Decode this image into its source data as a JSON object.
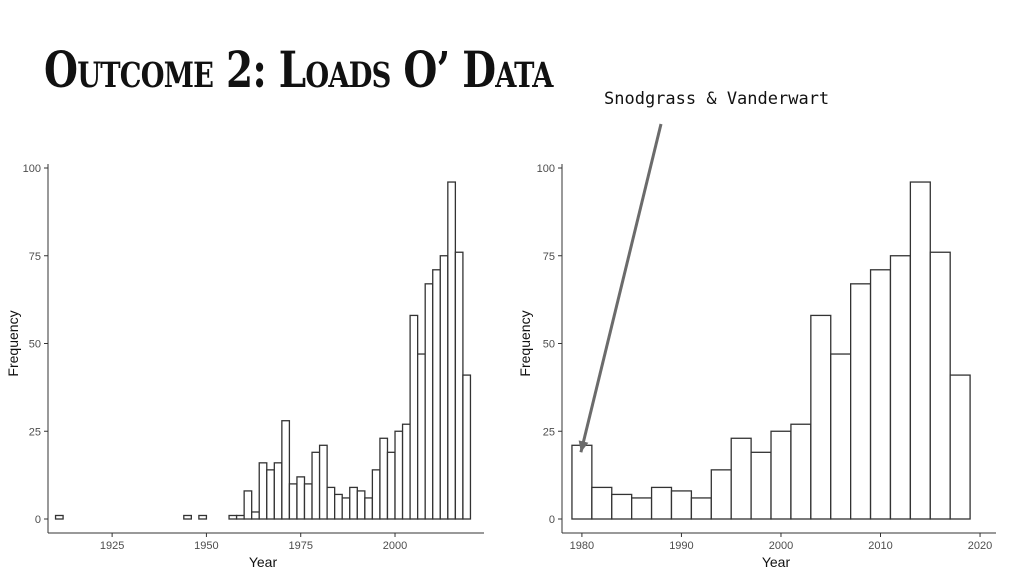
{
  "title": "Outcome 2: Loads O’ Data",
  "annotation": {
    "text": "Snodgrass & Vanderwart",
    "color": "#6b6b6b"
  },
  "chart_data": [
    {
      "type": "bar",
      "subtype": "histogram",
      "bin_width": 2,
      "xlabel": "Year",
      "ylabel": "Frequency",
      "xlim": [
        1908,
        2022
      ],
      "ylim": [
        0,
        100
      ],
      "x_ticks": [
        1925,
        1950,
        1975,
        2000
      ],
      "y_ticks": [
        0,
        25,
        50,
        75,
        100
      ],
      "grid": false,
      "bar_fill": "#ffffff",
      "bar_stroke": "#333333",
      "bins": [
        {
          "start": 1910,
          "value": 1
        },
        {
          "start": 1944,
          "value": 1
        },
        {
          "start": 1948,
          "value": 1
        },
        {
          "start": 1956,
          "value": 1
        },
        {
          "start": 1958,
          "value": 1
        },
        {
          "start": 1960,
          "value": 8
        },
        {
          "start": 1962,
          "value": 2
        },
        {
          "start": 1964,
          "value": 16
        },
        {
          "start": 1966,
          "value": 14
        },
        {
          "start": 1968,
          "value": 16
        },
        {
          "start": 1970,
          "value": 28
        },
        {
          "start": 1972,
          "value": 10
        },
        {
          "start": 1974,
          "value": 12
        },
        {
          "start": 1976,
          "value": 10
        },
        {
          "start": 1978,
          "value": 19
        },
        {
          "start": 1980,
          "value": 21
        },
        {
          "start": 1982,
          "value": 9
        },
        {
          "start": 1984,
          "value": 7
        },
        {
          "start": 1986,
          "value": 6
        },
        {
          "start": 1988,
          "value": 9
        },
        {
          "start": 1990,
          "value": 8
        },
        {
          "start": 1992,
          "value": 6
        },
        {
          "start": 1994,
          "value": 14
        },
        {
          "start": 1996,
          "value": 23
        },
        {
          "start": 1998,
          "value": 19
        },
        {
          "start": 2000,
          "value": 25
        },
        {
          "start": 2002,
          "value": 27
        },
        {
          "start": 2004,
          "value": 58
        },
        {
          "start": 2006,
          "value": 47
        },
        {
          "start": 2008,
          "value": 67
        },
        {
          "start": 2010,
          "value": 71
        },
        {
          "start": 2012,
          "value": 75
        },
        {
          "start": 2014,
          "value": 96
        },
        {
          "start": 2016,
          "value": 76
        },
        {
          "start": 2018,
          "value": 41
        }
      ]
    },
    {
      "type": "bar",
      "subtype": "histogram",
      "bin_width": 2,
      "xlabel": "Year",
      "ylabel": "Frequency",
      "xlim": [
        1978,
        2021
      ],
      "ylim": [
        0,
        100
      ],
      "x_ticks": [
        1980,
        1990,
        2000,
        2010,
        2020
      ],
      "y_ticks": [
        0,
        25,
        50,
        75,
        100
      ],
      "grid": false,
      "bar_fill": "#ffffff",
      "bar_stroke": "#333333",
      "bins": [
        {
          "start": 1979,
          "value": 21
        },
        {
          "start": 1981,
          "value": 9
        },
        {
          "start": 1983,
          "value": 7
        },
        {
          "start": 1985,
          "value": 6
        },
        {
          "start": 1987,
          "value": 9
        },
        {
          "start": 1989,
          "value": 8
        },
        {
          "start": 1991,
          "value": 6
        },
        {
          "start": 1993,
          "value": 14
        },
        {
          "start": 1995,
          "value": 23
        },
        {
          "start": 1997,
          "value": 19
        },
        {
          "start": 1999,
          "value": 25
        },
        {
          "start": 2001,
          "value": 27
        },
        {
          "start": 2003,
          "value": 58
        },
        {
          "start": 2005,
          "value": 47
        },
        {
          "start": 2007,
          "value": 67
        },
        {
          "start": 2009,
          "value": 71
        },
        {
          "start": 2011,
          "value": 75
        },
        {
          "start": 2013,
          "value": 96
        },
        {
          "start": 2015,
          "value": 76
        },
        {
          "start": 2017,
          "value": 41
        }
      ]
    }
  ]
}
